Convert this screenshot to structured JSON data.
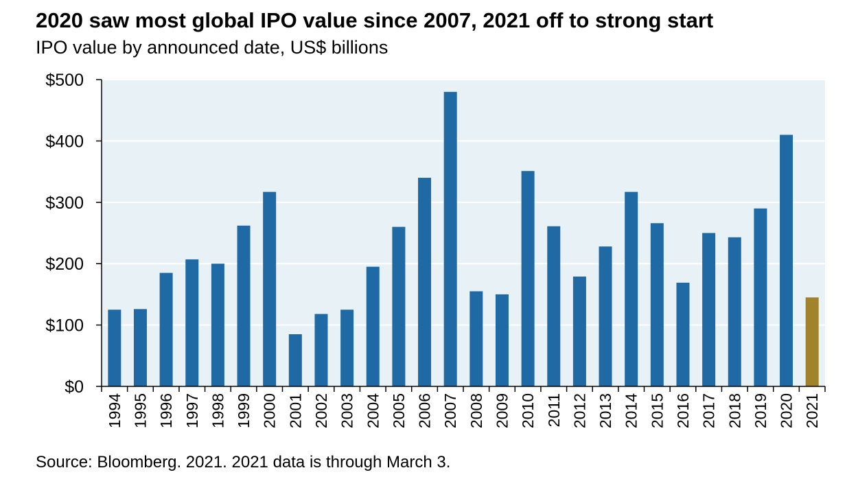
{
  "title": "2020 saw most global IPO value since 2007, 2021 off to strong start",
  "subtitle": "IPO value by announced date, US$ billions",
  "source": "Source: Bloomberg. 2021. 2021 data is through March 3.",
  "colors": {
    "bar": "#1f6aa5",
    "highlight_bar": "#a0832b",
    "plot_background": "#e8f1f6",
    "gridline": "#ffffff"
  },
  "chart_data": {
    "type": "bar",
    "categories": [
      "1994",
      "1995",
      "1996",
      "1997",
      "1998",
      "1999",
      "2000",
      "2001",
      "2002",
      "2003",
      "2004",
      "2005",
      "2006",
      "2007",
      "2008",
      "2009",
      "2010",
      "2011",
      "2012",
      "2013",
      "2014",
      "2015",
      "2016",
      "2017",
      "2018",
      "2019",
      "2020",
      "2021"
    ],
    "values": [
      125,
      126,
      185,
      207,
      200,
      262,
      317,
      85,
      118,
      125,
      195,
      260,
      340,
      480,
      155,
      150,
      351,
      261,
      179,
      228,
      317,
      266,
      169,
      250,
      243,
      290,
      410,
      145
    ],
    "highlight_category": "2021",
    "y_ticks": [
      0,
      100,
      200,
      300,
      400,
      500
    ],
    "y_tick_labels": [
      "$0",
      "$100",
      "$200",
      "$300",
      "$400",
      "$500"
    ],
    "ylim": [
      0,
      500
    ],
    "grid": true,
    "legend": "none"
  }
}
